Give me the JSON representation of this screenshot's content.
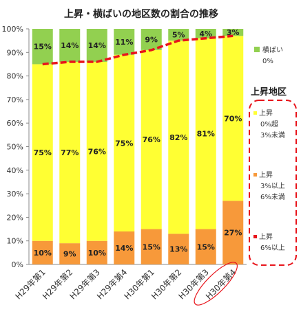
{
  "chart_data": {
    "type": "bar",
    "stacked": true,
    "title": "上昇・横ばいの地区数の割合の推移",
    "categories": [
      "H29年第1",
      "H29年第2",
      "H29年第3",
      "H29年第4",
      "H30年第1",
      "H30年第2",
      "H30年第3",
      "H30年第4"
    ],
    "highlighted_category": "H30年第4",
    "ylim": [
      0,
      100
    ],
    "y_ticks": [
      "0%",
      "10%",
      "20%",
      "30%",
      "40%",
      "50%",
      "60%",
      "70%",
      "80%",
      "90%",
      "100%"
    ],
    "grid": false,
    "series": [
      {
        "name": "上昇 3%以上6%未満",
        "color": "#F7993A",
        "values": [
          10,
          9,
          10,
          14,
          15,
          13,
          15,
          27
        ],
        "labels": [
          "10%",
          "9%",
          "10%",
          "14%",
          "15%",
          "13%",
          "15%",
          "27%"
        ]
      },
      {
        "name": "上昇 0%超3%未満",
        "color": "#FFFF33",
        "values": [
          75,
          77,
          76,
          75,
          76,
          82,
          81,
          70
        ],
        "labels": [
          "75%",
          "77%",
          "76%",
          "75%",
          "76%",
          "82%",
          "81%",
          "70%"
        ]
      },
      {
        "name": "横ばい 0%",
        "color": "#92D050",
        "values": [
          15,
          14,
          14,
          11,
          9,
          5,
          4,
          3
        ],
        "labels": [
          "15%",
          "14%",
          "14%",
          "11%",
          "9%",
          "5%",
          "4%",
          "3%"
        ]
      }
    ],
    "line_series": {
      "name": "上昇 6%以上",
      "color": "#E8141B",
      "dashed": true,
      "values": [
        85,
        86,
        86,
        89,
        91,
        95,
        96,
        97
      ]
    },
    "legend": {
      "placement": "right",
      "flat": {
        "name": "横ばい",
        "value": "0%",
        "color": "#92D050"
      },
      "rise_title": "上昇地区",
      "rise_items": [
        {
          "line1": "上昇",
          "line2": "0%超",
          "line3": "3%未満",
          "color": "#FFFF33"
        },
        {
          "line1": "上昇",
          "line2": "3%以上",
          "line3": "6%未満",
          "color": "#F7993A"
        },
        {
          "line1": "上昇",
          "line2": "6%以上",
          "line3": "",
          "color": "#E8141B"
        }
      ]
    }
  }
}
